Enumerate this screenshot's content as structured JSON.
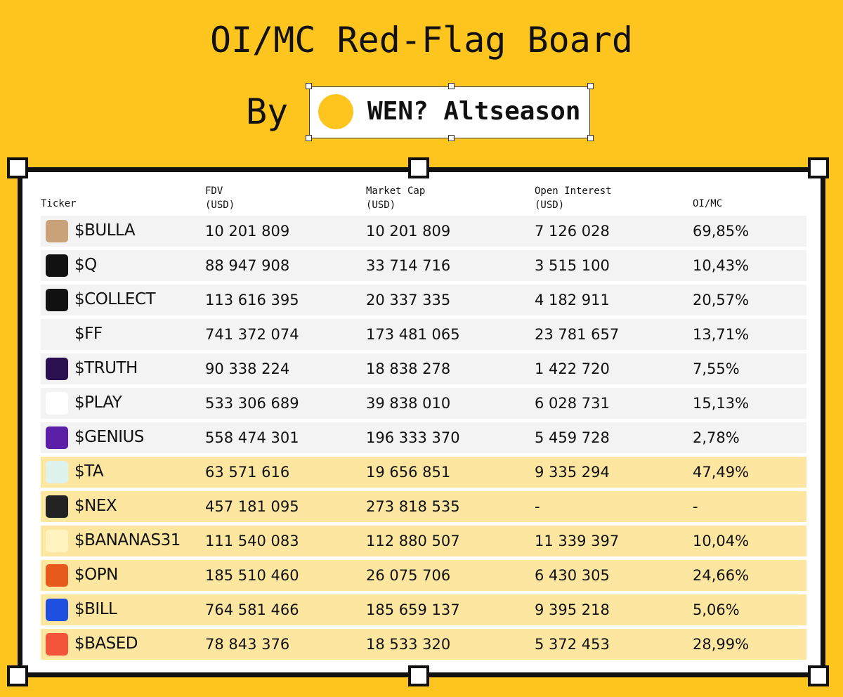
{
  "header": {
    "title": "OI/MC Red-Flag Board",
    "by": "By",
    "brand": "WEN? Altseason"
  },
  "table": {
    "columns": [
      [
        "Ticker"
      ],
      [
        "FDV",
        "(USD)"
      ],
      [
        "Market Cap",
        "(USD)"
      ],
      [
        "Open Interest",
        "(USD)"
      ],
      [
        "OI/MC"
      ]
    ],
    "rows": [
      [
        "$BULLA",
        "10 201 809",
        "10 201 809",
        "7 126 028",
        "69,85%"
      ],
      [
        "$Q",
        "88 947 908",
        "33 714 716",
        "3 515 100",
        "10,43%"
      ],
      [
        "$COLLECT",
        "113 616 395",
        "20 337 335",
        "4 182 911",
        "20,57%"
      ],
      [
        "$FF",
        "741 372 074",
        "173 481 065",
        "23 781 657",
        "13,71%"
      ],
      [
        "$TRUTH",
        "90 338 224",
        "18 838 278",
        "1 422 720",
        "7,55%"
      ],
      [
        "$PLAY",
        "533 306 689",
        "39 838 010",
        "6 028 731",
        "15,13%"
      ],
      [
        "$GENIUS",
        "558 474 301",
        "196 333 370",
        "5 459 728",
        "2,78%"
      ],
      [
        "$TA",
        "63 571 616",
        "19 656 851",
        "9 335 294",
        "47,49%"
      ],
      [
        "$NEX",
        "457 181 095",
        "273 818 535",
        "-",
        "-"
      ],
      [
        "$BANANAS31",
        "111 540 083",
        "112 880 507",
        "11 339 397",
        "10,04%"
      ],
      [
        "$OPN",
        "185 510 460",
        "26 075 706",
        "6 430 305",
        "24,66%"
      ],
      [
        "$BILL",
        "764 581 466",
        "185 659 137",
        "9 395 218",
        "5,06%"
      ],
      [
        "$BASED",
        "78 843 376",
        "18 533 320",
        "5 372 453",
        "28,99%"
      ]
    ]
  }
}
